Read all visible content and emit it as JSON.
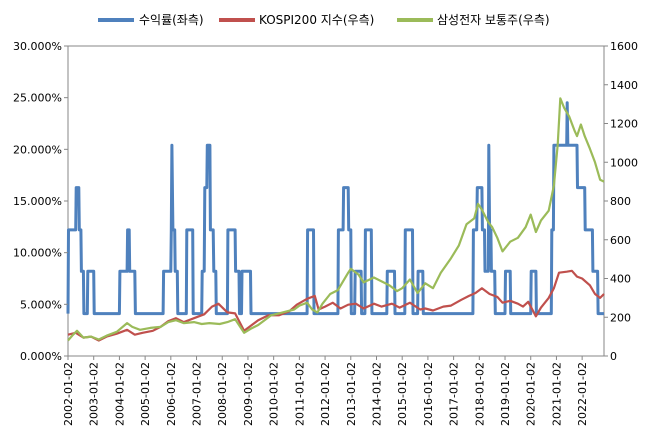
{
  "chart_data": {
    "type": "line",
    "title": "",
    "xlabel": "",
    "ylabel": "",
    "y2label": "",
    "legend_position": "top",
    "grid": false,
    "categories": [
      "2002-01-02",
      "2003-01-02",
      "2004-01-02",
      "2005-01-02",
      "2006-01-02",
      "2007-01-02",
      "2008-01-02",
      "2009-01-02",
      "2010-01-02",
      "2011-01-02",
      "2012-01-02",
      "2013-01-02",
      "2014-01-02",
      "2015-01-02",
      "2016-01-02",
      "2017-01-02",
      "2018-01-02",
      "2019-01-02",
      "2020-01-02",
      "2021-01-02",
      "2022-01-02"
    ],
    "x_range": [
      2002.0,
      2022.85
    ],
    "ylim_left": [
      0,
      30
    ],
    "yticks_left": [
      "0.000%",
      "5.000%",
      "10.000%",
      "15.000%",
      "20.000%",
      "25.000%",
      "30.000%"
    ],
    "ylim_right": [
      0,
      1600
    ],
    "yticks_right": [
      "0",
      "200",
      "400",
      "600",
      "800",
      "1000",
      "1200",
      "1400",
      "1600"
    ],
    "series": [
      {
        "name": "수익률(좌측)",
        "axis": "left",
        "color": "#4f81bd",
        "points": [
          [
            2002.0,
            4.1
          ],
          [
            2002.02,
            12.2
          ],
          [
            2002.3,
            12.2
          ],
          [
            2002.32,
            16.3
          ],
          [
            2002.42,
            16.3
          ],
          [
            2002.44,
            12.2
          ],
          [
            2002.5,
            12.2
          ],
          [
            2002.52,
            8.2
          ],
          [
            2002.6,
            8.2
          ],
          [
            2002.62,
            4.1
          ],
          [
            2002.75,
            4.1
          ],
          [
            2002.77,
            8.2
          ],
          [
            2003.0,
            8.2
          ],
          [
            2003.02,
            4.1
          ],
          [
            2003.6,
            4.1
          ],
          [
            2004.0,
            4.1
          ],
          [
            2004.02,
            8.2
          ],
          [
            2004.3,
            8.2
          ],
          [
            2004.32,
            12.2
          ],
          [
            2004.38,
            12.2
          ],
          [
            2004.4,
            8.2
          ],
          [
            2004.6,
            8.2
          ],
          [
            2004.62,
            4.1
          ],
          [
            2005.7,
            4.1
          ],
          [
            2005.72,
            8.2
          ],
          [
            2006.0,
            8.2
          ],
          [
            2006.02,
            12.2
          ],
          [
            2006.04,
            20.4
          ],
          [
            2006.08,
            12.2
          ],
          [
            2006.15,
            12.2
          ],
          [
            2006.17,
            8.2
          ],
          [
            2006.25,
            8.2
          ],
          [
            2006.27,
            4.1
          ],
          [
            2006.6,
            4.1
          ],
          [
            2006.62,
            12.2
          ],
          [
            2006.85,
            12.2
          ],
          [
            2006.87,
            4.1
          ],
          [
            2007.2,
            4.1
          ],
          [
            2007.22,
            8.2
          ],
          [
            2007.3,
            8.2
          ],
          [
            2007.32,
            16.3
          ],
          [
            2007.4,
            16.3
          ],
          [
            2007.42,
            20.4
          ],
          [
            2007.52,
            20.4
          ],
          [
            2007.54,
            12.2
          ],
          [
            2007.65,
            12.2
          ],
          [
            2007.67,
            8.2
          ],
          [
            2007.75,
            8.2
          ],
          [
            2007.77,
            4.1
          ],
          [
            2008.2,
            4.1
          ],
          [
            2008.22,
            12.2
          ],
          [
            2008.5,
            12.2
          ],
          [
            2008.52,
            8.2
          ],
          [
            2008.65,
            8.2
          ],
          [
            2008.67,
            4.1
          ],
          [
            2008.75,
            4.1
          ],
          [
            2008.77,
            8.2
          ],
          [
            2009.1,
            8.2
          ],
          [
            2009.12,
            4.1
          ],
          [
            2011.3,
            4.1
          ],
          [
            2011.32,
            12.2
          ],
          [
            2011.55,
            12.2
          ],
          [
            2011.57,
            4.1
          ],
          [
            2012.5,
            4.1
          ],
          [
            2012.52,
            12.2
          ],
          [
            2012.7,
            12.2
          ],
          [
            2012.72,
            16.3
          ],
          [
            2012.9,
            16.3
          ],
          [
            2012.92,
            12.2
          ],
          [
            2013.0,
            12.2
          ],
          [
            2013.02,
            4.1
          ],
          [
            2013.15,
            4.1
          ],
          [
            2013.17,
            8.2
          ],
          [
            2013.4,
            8.2
          ],
          [
            2013.42,
            4.1
          ],
          [
            2013.55,
            4.1
          ],
          [
            2013.57,
            12.2
          ],
          [
            2013.8,
            12.2
          ],
          [
            2013.82,
            4.1
          ],
          [
            2014.4,
            4.1
          ],
          [
            2014.42,
            8.2
          ],
          [
            2014.7,
            8.2
          ],
          [
            2014.72,
            4.1
          ],
          [
            2015.1,
            4.1
          ],
          [
            2015.12,
            12.2
          ],
          [
            2015.4,
            12.2
          ],
          [
            2015.42,
            4.1
          ],
          [
            2015.6,
            4.1
          ],
          [
            2015.62,
            8.2
          ],
          [
            2015.8,
            8.2
          ],
          [
            2015.82,
            4.1
          ],
          [
            2017.75,
            4.1
          ],
          [
            2017.77,
            12.2
          ],
          [
            2017.9,
            12.2
          ],
          [
            2017.92,
            16.3
          ],
          [
            2018.1,
            16.3
          ],
          [
            2018.12,
            12.2
          ],
          [
            2018.2,
            12.2
          ],
          [
            2018.22,
            8.2
          ],
          [
            2018.35,
            8.2
          ],
          [
            2018.37,
            20.4
          ],
          [
            2018.4,
            12.2
          ],
          [
            2018.45,
            12.2
          ],
          [
            2018.47,
            8.2
          ],
          [
            2018.6,
            8.2
          ],
          [
            2018.62,
            4.1
          ],
          [
            2019.0,
            4.1
          ],
          [
            2019.02,
            8.2
          ],
          [
            2019.2,
            8.2
          ],
          [
            2019.22,
            4.1
          ],
          [
            2020.0,
            4.1
          ],
          [
            2020.02,
            8.2
          ],
          [
            2020.2,
            8.2
          ],
          [
            2020.22,
            4.1
          ],
          [
            2020.8,
            4.1
          ],
          [
            2020.82,
            12.2
          ],
          [
            2020.88,
            12.2
          ],
          [
            2020.9,
            20.4
          ],
          [
            2021.4,
            20.4
          ],
          [
            2021.42,
            24.5
          ],
          [
            2021.44,
            20.4
          ],
          [
            2021.8,
            20.4
          ],
          [
            2021.82,
            16.3
          ],
          [
            2022.1,
            16.3
          ],
          [
            2022.12,
            12.2
          ],
          [
            2022.4,
            12.2
          ],
          [
            2022.42,
            8.2
          ],
          [
            2022.6,
            8.2
          ],
          [
            2022.62,
            4.1
          ],
          [
            2022.85,
            4.1
          ]
        ]
      },
      {
        "name": "KOSPI200 지수(우측)",
        "axis": "right",
        "color": "#c0504d",
        "points": [
          [
            2002.0,
            110
          ],
          [
            2002.3,
            120
          ],
          [
            2002.6,
            95
          ],
          [
            2002.9,
            100
          ],
          [
            2003.2,
            80
          ],
          [
            2003.5,
            100
          ],
          [
            2003.9,
            115
          ],
          [
            2004.3,
            135
          ],
          [
            2004.6,
            110
          ],
          [
            2004.9,
            120
          ],
          [
            2005.3,
            130
          ],
          [
            2005.6,
            150
          ],
          [
            2005.9,
            180
          ],
          [
            2006.2,
            195
          ],
          [
            2006.5,
            175
          ],
          [
            2006.9,
            195
          ],
          [
            2007.3,
            215
          ],
          [
            2007.6,
            255
          ],
          [
            2007.85,
            270
          ],
          [
            2008.2,
            225
          ],
          [
            2008.5,
            220
          ],
          [
            2008.85,
            130
          ],
          [
            2009.0,
            145
          ],
          [
            2009.4,
            185
          ],
          [
            2009.8,
            210
          ],
          [
            2010.2,
            210
          ],
          [
            2010.6,
            230
          ],
          [
            2010.9,
            265
          ],
          [
            2011.3,
            295
          ],
          [
            2011.6,
            310
          ],
          [
            2011.75,
            240
          ],
          [
            2012.0,
            255
          ],
          [
            2012.3,
            275
          ],
          [
            2012.6,
            245
          ],
          [
            2012.9,
            265
          ],
          [
            2013.2,
            270
          ],
          [
            2013.5,
            245
          ],
          [
            2013.9,
            270
          ],
          [
            2014.2,
            255
          ],
          [
            2014.6,
            270
          ],
          [
            2014.9,
            250
          ],
          [
            2015.3,
            275
          ],
          [
            2015.7,
            240
          ],
          [
            2015.9,
            245
          ],
          [
            2016.2,
            235
          ],
          [
            2016.6,
            255
          ],
          [
            2016.9,
            260
          ],
          [
            2017.3,
            290
          ],
          [
            2017.6,
            310
          ],
          [
            2017.85,
            325
          ],
          [
            2018.1,
            350
          ],
          [
            2018.4,
            320
          ],
          [
            2018.7,
            305
          ],
          [
            2018.9,
            275
          ],
          [
            2019.2,
            285
          ],
          [
            2019.5,
            270
          ],
          [
            2019.7,
            255
          ],
          [
            2019.9,
            280
          ],
          [
            2020.2,
            205
          ],
          [
            2020.4,
            250
          ],
          [
            2020.7,
            300
          ],
          [
            2020.9,
            350
          ],
          [
            2021.1,
            430
          ],
          [
            2021.4,
            435
          ],
          [
            2021.6,
            440
          ],
          [
            2021.8,
            410
          ],
          [
            2022.0,
            400
          ],
          [
            2022.3,
            365
          ],
          [
            2022.5,
            320
          ],
          [
            2022.7,
            300
          ],
          [
            2022.85,
            320
          ]
        ]
      },
      {
        "name": "삼성전자 보통주(우측)",
        "axis": "right",
        "color": "#9bbb59",
        "points": [
          [
            2002.0,
            80
          ],
          [
            2002.2,
            110
          ],
          [
            2002.35,
            130
          ],
          [
            2002.6,
            95
          ],
          [
            2002.9,
            100
          ],
          [
            2003.2,
            85
          ],
          [
            2003.5,
            105
          ],
          [
            2003.9,
            125
          ],
          [
            2004.3,
            170
          ],
          [
            2004.5,
            150
          ],
          [
            2004.8,
            135
          ],
          [
            2005.2,
            145
          ],
          [
            2005.6,
            150
          ],
          [
            2005.9,
            175
          ],
          [
            2006.2,
            185
          ],
          [
            2006.5,
            170
          ],
          [
            2006.9,
            175
          ],
          [
            2007.2,
            165
          ],
          [
            2007.5,
            170
          ],
          [
            2007.9,
            165
          ],
          [
            2008.2,
            175
          ],
          [
            2008.5,
            190
          ],
          [
            2008.85,
            120
          ],
          [
            2009.1,
            140
          ],
          [
            2009.4,
            160
          ],
          [
            2009.7,
            190
          ],
          [
            2009.9,
            210
          ],
          [
            2010.2,
            220
          ],
          [
            2010.5,
            230
          ],
          [
            2010.8,
            240
          ],
          [
            2011.0,
            260
          ],
          [
            2011.3,
            275
          ],
          [
            2011.5,
            240
          ],
          [
            2011.7,
            225
          ],
          [
            2011.9,
            270
          ],
          [
            2012.2,
            320
          ],
          [
            2012.5,
            340
          ],
          [
            2012.9,
            430
          ],
          [
            2013.0,
            450
          ],
          [
            2013.3,
            420
          ],
          [
            2013.5,
            380
          ],
          [
            2013.9,
            405
          ],
          [
            2014.2,
            385
          ],
          [
            2014.5,
            365
          ],
          [
            2014.8,
            335
          ],
          [
            2015.0,
            350
          ],
          [
            2015.3,
            395
          ],
          [
            2015.6,
            325
          ],
          [
            2015.9,
            375
          ],
          [
            2016.2,
            350
          ],
          [
            2016.5,
            430
          ],
          [
            2016.9,
            505
          ],
          [
            2017.2,
            570
          ],
          [
            2017.5,
            680
          ],
          [
            2017.8,
            710
          ],
          [
            2017.95,
            785
          ],
          [
            2018.1,
            755
          ],
          [
            2018.35,
            690
          ],
          [
            2018.5,
            665
          ],
          [
            2018.7,
            610
          ],
          [
            2018.9,
            540
          ],
          [
            2019.2,
            590
          ],
          [
            2019.5,
            610
          ],
          [
            2019.8,
            665
          ],
          [
            2020.0,
            730
          ],
          [
            2020.2,
            640
          ],
          [
            2020.4,
            700
          ],
          [
            2020.7,
            750
          ],
          [
            2020.9,
            880
          ],
          [
            2021.05,
            1090
          ],
          [
            2021.15,
            1330
          ],
          [
            2021.3,
            1280
          ],
          [
            2021.5,
            1235
          ],
          [
            2021.7,
            1165
          ],
          [
            2021.8,
            1135
          ],
          [
            2021.95,
            1195
          ],
          [
            2022.1,
            1135
          ],
          [
            2022.3,
            1070
          ],
          [
            2022.5,
            1000
          ],
          [
            2022.7,
            910
          ],
          [
            2022.85,
            900
          ]
        ]
      }
    ]
  }
}
